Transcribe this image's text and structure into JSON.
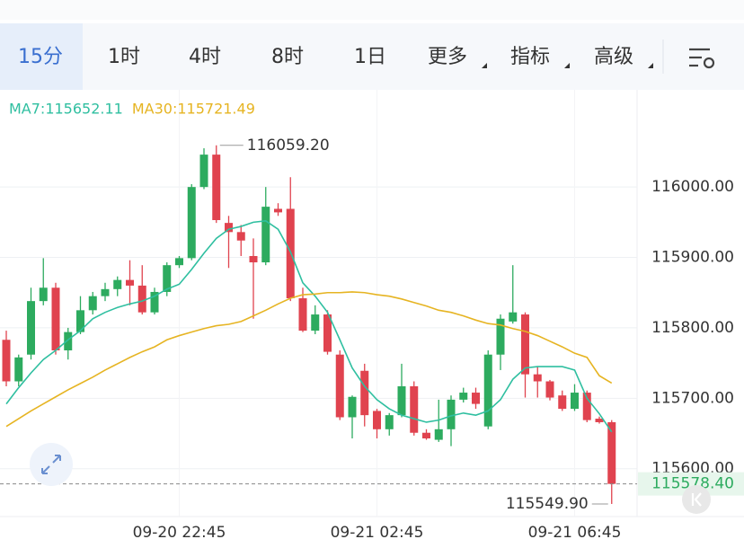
{
  "tabs": [
    "15分",
    "1时",
    "4时",
    "8时",
    "1日",
    "更多",
    "指标",
    "高级"
  ],
  "chart_data": {
    "type": "candlestick",
    "categories": [
      null,
      null,
      null,
      null,
      null,
      null,
      null,
      null,
      null,
      null,
      null,
      null,
      null,
      null,
      "09-20 22:45",
      null,
      null,
      null,
      null,
      null,
      null,
      null,
      null,
      null,
      null,
      null,
      null,
      null,
      null,
      null,
      "09-21 02:45",
      null,
      null,
      null,
      null,
      null,
      null,
      null,
      null,
      null,
      null,
      null,
      null,
      null,
      null,
      null,
      "09-21 06:45",
      null,
      null,
      null
    ],
    "open": [
      115783,
      115724,
      115762,
      115838,
      115857,
      115768,
      115794,
      115825,
      115845,
      115855,
      115868,
      115860,
      115822,
      115851,
      115889,
      115899,
      116000,
      116046,
      115949,
      115936,
      115902,
      115893,
      115969,
      115969,
      115842,
      115796,
      115819,
      115762,
      115673,
      115739,
      115682,
      115656,
      115676,
      115717,
      115651,
      115641,
      115656,
      115698,
      115708,
      115660,
      115762,
      115809,
      115819,
      115734,
      115724,
      115704,
      115685,
      115708,
      115671,
      115666
    ],
    "high": [
      115796,
      115762,
      115857,
      115899,
      115864,
      115800,
      115845,
      115851,
      115864,
      115873,
      115896,
      115889,
      115857,
      115893,
      115902,
      116004,
      116055,
      116059.2,
      115959,
      115946,
      115927,
      116000,
      115977,
      116014,
      115857,
      115832,
      115825,
      115768,
      115704,
      115749,
      115685,
      115679,
      115749,
      115724,
      115656,
      115698,
      115704,
      115715,
      115715,
      115768,
      115819,
      115889,
      115822,
      115745,
      115726,
      115711,
      115720,
      115711,
      115674,
      115669
    ],
    "low": [
      115717,
      115717,
      115755,
      115832,
      115762,
      115755,
      115791,
      115819,
      115838,
      115845,
      115832,
      115819,
      115819,
      115845,
      115885,
      115896,
      115997,
      115949,
      115885,
      115902,
      115813,
      115889,
      115959,
      115838,
      115794,
      115791,
      115762,
      115669,
      115643,
      115660,
      115643,
      115647,
      115673,
      115647,
      115641,
      115638,
      115632,
      115694,
      115685,
      115656,
      115740,
      115806,
      115701,
      115701,
      115697,
      115682,
      115682,
      115666,
      115664,
      115549.9
    ],
    "close": [
      115724,
      115758,
      115838,
      115857,
      115768,
      115794,
      115825,
      115845,
      115855,
      115868,
      115860,
      115822,
      115851,
      115889,
      115899,
      116000,
      116046,
      115953,
      115936,
      115924,
      115893,
      115972,
      115964,
      115842,
      115796,
      115819,
      115766,
      115673,
      115702,
      115676,
      115656,
      115676,
      115717,
      115651,
      115643,
      115656,
      115698,
      115708,
      115692,
      115762,
      115813,
      115822,
      115734,
      115724,
      115701,
      115685,
      115708,
      115669,
      115666,
      115578.4
    ],
    "up_color": "#2dab5f",
    "down_color": "#e0434f",
    "series": [
      {
        "name": "MA7:115652.11",
        "color": "#2fbfa0",
        "values": [
          115692,
          115715,
          115736,
          115755,
          115768,
          115783,
          115796,
          115813,
          115822,
          115829,
          115834,
          115838,
          115845,
          115855,
          115862,
          115883,
          115906,
          115927,
          115940,
          115944,
          115950,
          115952,
          115940,
          115908,
          115864,
          115845,
          115822,
          115783,
          115743,
          115717,
          115698,
          115685,
          115676,
          115671,
          115666,
          115669,
          115675,
          115679,
          115676,
          115682,
          115698,
          115727,
          115743,
          115745,
          115745,
          115745,
          115740,
          115700,
          115678,
          115652.11
        ]
      },
      {
        "name": "MA30:115721.49",
        "color": "#e6b422",
        "values": [
          115660,
          115671,
          115682,
          115692,
          115702,
          115712,
          115721,
          115730,
          115740,
          115749,
          115758,
          115766,
          115773,
          115783,
          115789,
          115794,
          115799,
          115803,
          115805,
          115809,
          115817,
          115825,
          115834,
          115842,
          115847,
          115848,
          115850,
          115850,
          115851,
          115850,
          115847,
          115845,
          115841,
          115836,
          115831,
          115825,
          115822,
          115817,
          115811,
          115806,
          115804,
          115799,
          115795,
          115789,
          115781,
          115773,
          115764,
          115758,
          115732,
          115721.49
        ]
      }
    ],
    "ylim": [
      115532,
      116138
    ],
    "yticks": [
      {
        "value": 115600,
        "label": "115600.00"
      },
      {
        "value": 115700,
        "label": "115700.00"
      },
      {
        "value": 115800,
        "label": "115800.00"
      },
      {
        "value": 115900,
        "label": "115900.00"
      },
      {
        "value": 116000,
        "label": "116000.00"
      }
    ],
    "grid": true,
    "high_marker": {
      "value": 116059.2,
      "label": "116059.20"
    },
    "low_marker": {
      "value": 115549.9,
      "label": "115549.90"
    },
    "last_price": {
      "value": 115578.4,
      "label": "115578.40"
    }
  }
}
